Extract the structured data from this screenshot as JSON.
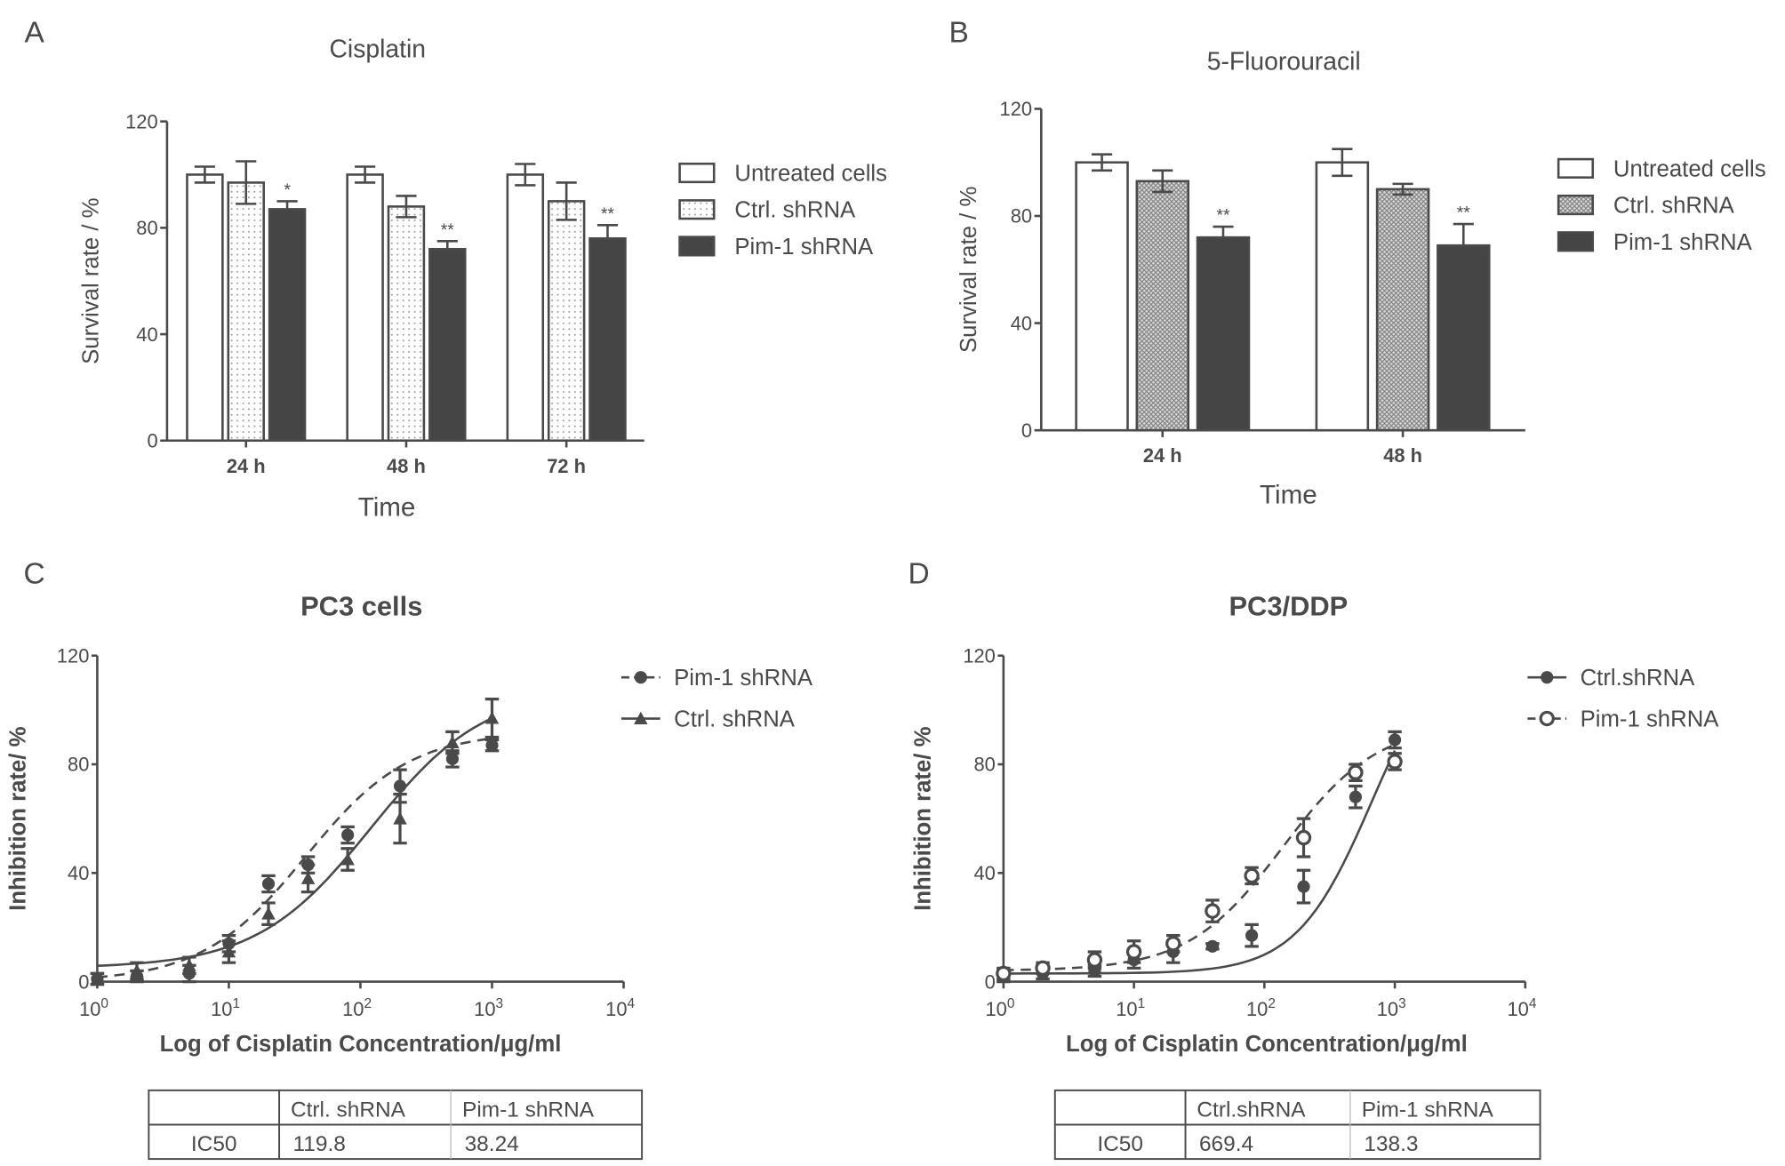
{
  "chart_data": [
    {
      "panel": "A",
      "type": "bar",
      "title": "Cisplatin",
      "xlabel": "Time",
      "ylabel": "Survival rate / %",
      "ylim": [
        0,
        120
      ],
      "yticks": [
        0,
        40,
        80,
        120
      ],
      "categories": [
        "24 h",
        "48 h",
        "72 h"
      ],
      "series": [
        {
          "name": "Untreated cells",
          "fill": "white",
          "values": [
            100,
            100,
            100
          ],
          "errors": [
            3,
            3,
            4
          ]
        },
        {
          "name": "Ctrl. shRNA",
          "fill": "dots",
          "values": [
            97,
            88,
            90
          ],
          "errors": [
            8,
            4,
            7
          ]
        },
        {
          "name": "Pim-1 shRNA",
          "fill": "dark",
          "values": [
            87,
            72,
            76
          ],
          "errors": [
            3,
            3,
            5
          ]
        }
      ],
      "annotations": [
        "*",
        "**",
        "**"
      ],
      "legend": "right"
    },
    {
      "panel": "B",
      "type": "bar",
      "title": "5-Fluorouracil",
      "xlabel": "Time",
      "ylabel": "Survival rate / %",
      "ylim": [
        0,
        120
      ],
      "yticks": [
        0,
        40,
        80,
        120
      ],
      "categories": [
        "24 h",
        "48 h"
      ],
      "series": [
        {
          "name": "Untreated cells",
          "fill": "white",
          "values": [
            100,
            100
          ],
          "errors": [
            3,
            5
          ]
        },
        {
          "name": "Ctrl. shRNA",
          "fill": "hatch",
          "values": [
            93,
            90
          ],
          "errors": [
            4,
            2
          ]
        },
        {
          "name": "Pim-1 shRNA",
          "fill": "dark",
          "values": [
            72,
            69
          ],
          "errors": [
            4,
            8
          ]
        }
      ],
      "annotations": [
        "**",
        "**"
      ],
      "legend": "right"
    },
    {
      "panel": "C",
      "type": "scatter",
      "title": "PC3 cells",
      "xlabel": "Log of Cisplatin Concentration/μg/ml",
      "ylabel": "Inhibition rate/ %",
      "xscale": "log",
      "xlim": [
        1,
        10000
      ],
      "ylim": [
        0,
        120
      ],
      "yticks": [
        0,
        40,
        80,
        120
      ],
      "xticks": [
        {
          "base": "10",
          "exp": "0"
        },
        {
          "base": "10",
          "exp": "1"
        },
        {
          "base": "10",
          "exp": "2"
        },
        {
          "base": "10",
          "exp": "3"
        },
        {
          "base": "10",
          "exp": "4"
        }
      ],
      "x": [
        1,
        2,
        5,
        10,
        20,
        40,
        80,
        200,
        500,
        1000
      ],
      "series": [
        {
          "name": "Pim-1 shRNA",
          "marker": "circle-filled",
          "line": "dashed",
          "values": [
            1,
            2,
            3,
            14,
            36,
            43,
            54,
            72,
            82,
            87
          ],
          "errors": [
            2,
            2,
            3,
            3,
            3,
            3,
            3,
            6,
            3,
            2
          ],
          "fit": {
            "bottom": 0,
            "top": 92,
            "ic50": 38.24,
            "hill": 1.1
          }
        },
        {
          "name": "Ctrl. shRNA",
          "marker": "triangle",
          "line": "solid",
          "values": [
            1,
            4,
            6,
            11,
            25,
            38,
            45,
            60,
            88,
            97
          ],
          "errors": [
            2,
            3,
            3,
            4,
            4,
            5,
            4,
            9,
            4,
            7
          ],
          "fit": {
            "bottom": 5,
            "top": 108,
            "ic50": 119.8,
            "hill": 1.0
          }
        }
      ],
      "legend": "top-right",
      "table": {
        "headers": [
          "",
          "Ctrl. shRNA",
          "Pim-1 shRNA"
        ],
        "rows": [
          [
            "IC50",
            "119.8",
            "38.24"
          ]
        ]
      }
    },
    {
      "panel": "D",
      "type": "scatter",
      "title": "PC3/DDP",
      "xlabel": "Log of Cisplatin Concentration/μg/ml",
      "ylabel": "Inhibition rate/ %",
      "xscale": "log",
      "xlim": [
        1,
        10000
      ],
      "ylim": [
        0,
        120
      ],
      "yticks": [
        0,
        40,
        80,
        120
      ],
      "xticks": [
        {
          "base": "10",
          "exp": "0"
        },
        {
          "base": "10",
          "exp": "1"
        },
        {
          "base": "10",
          "exp": "2"
        },
        {
          "base": "10",
          "exp": "3"
        },
        {
          "base": "10",
          "exp": "4"
        }
      ],
      "x": [
        1,
        2,
        5,
        10,
        20,
        40,
        80,
        200,
        500,
        1000
      ],
      "series": [
        {
          "name": "Ctrl.shRNA",
          "marker": "circle-filled",
          "line": "solid",
          "values": [
            2,
            3,
            4,
            8,
            11,
            13,
            17,
            35,
            68,
            89
          ],
          "errors": [
            2,
            2,
            2,
            3,
            4,
            1,
            4,
            6,
            4,
            3
          ],
          "fit": {
            "bottom": 3,
            "top": 130,
            "ic50": 669.4,
            "hill": 1.5
          }
        },
        {
          "name": "Pim-1 shRNA",
          "marker": "circle-open",
          "line": "dashed",
          "values": [
            3,
            5,
            8,
            11,
            14,
            26,
            39,
            53,
            77,
            81
          ],
          "errors": [
            2,
            2,
            3,
            4,
            3,
            4,
            3,
            7,
            3,
            3
          ],
          "fit": {
            "bottom": 4,
            "top": 95,
            "ic50": 138.3,
            "hill": 1.2
          }
        }
      ],
      "legend": "top-right",
      "table": {
        "headers": [
          "",
          "Ctrl.shRNA",
          "Pim-1 shRNA"
        ],
        "rows": [
          [
            "IC50",
            "669.4",
            "138.3"
          ]
        ]
      }
    }
  ],
  "colors": {
    "ink": "#4a4a4a",
    "dark_bar": "#454545"
  }
}
